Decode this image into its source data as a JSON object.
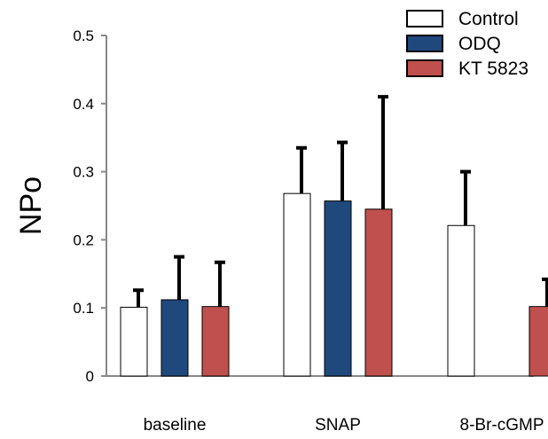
{
  "chart_data": {
    "type": "bar",
    "title": "",
    "xlabel": "",
    "ylabel": "NPo",
    "ylim": [
      0,
      0.5
    ],
    "yticks": [
      0,
      0.1,
      0.2,
      0.3,
      0.4,
      0.5
    ],
    "ytick_labels": [
      "0",
      "0.1",
      "0.2",
      "0.3",
      "0.4",
      "0.5"
    ],
    "categories": [
      "baseline",
      "SNAP",
      "8-Br-cGMP"
    ],
    "series": [
      {
        "name": "Control",
        "color": "#ffffff",
        "values": [
          0.101,
          0.268,
          0.221
        ],
        "errors": [
          0.025,
          0.067,
          0.079
        ]
      },
      {
        "name": "ODQ",
        "color": "#1f497d",
        "values": [
          0.112,
          0.257,
          null
        ],
        "errors": [
          0.063,
          0.086,
          null
        ]
      },
      {
        "name": "KT 5823",
        "color": "#c0504d",
        "values": [
          0.102,
          0.245,
          0.102
        ],
        "errors": [
          0.065,
          0.165,
          0.04
        ]
      }
    ],
    "annotations": [
      {
        "text": "*",
        "category": "8-Br-cGMP",
        "series": "KT 5823"
      }
    ],
    "legend": "top-right",
    "grid": false
  }
}
